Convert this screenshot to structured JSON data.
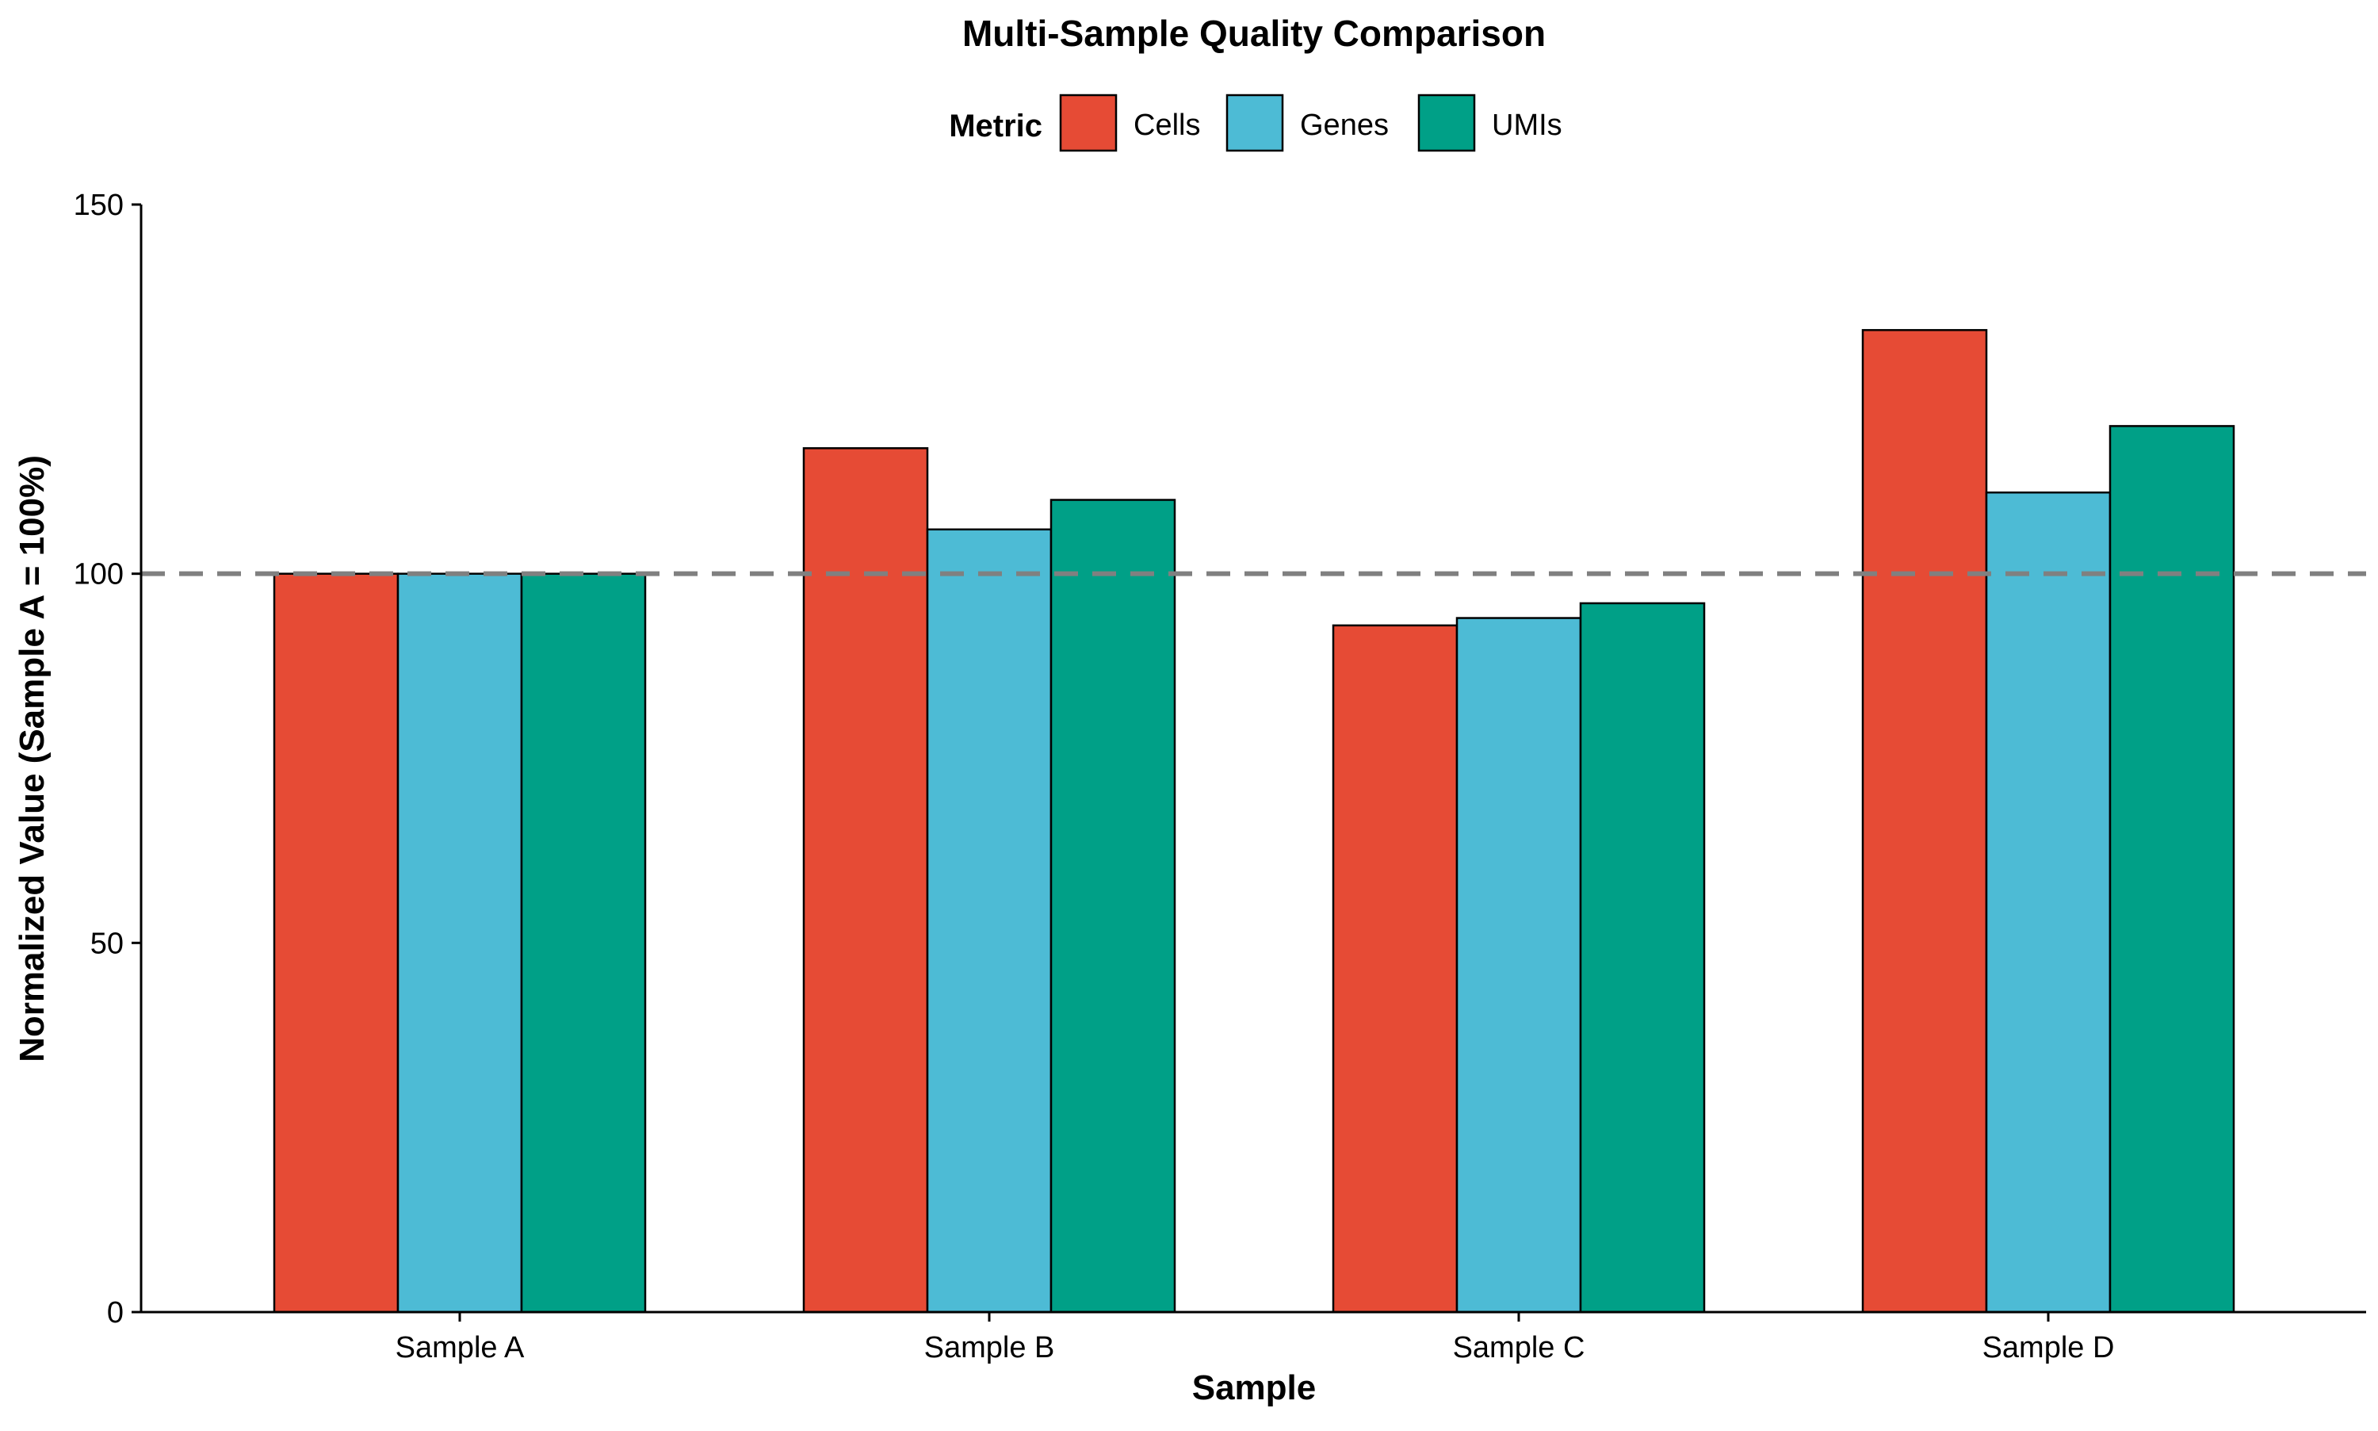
{
  "chart_data": {
    "type": "bar",
    "title": "Multi-Sample Quality Comparison",
    "xlabel": "Sample",
    "ylabel": "Normalized Value (Sample A = 100%)",
    "categories": [
      "Sample A",
      "Sample B",
      "Sample C",
      "Sample D"
    ],
    "series": [
      {
        "name": "Cells",
        "color": "#E64B35",
        "values": [
          100,
          117,
          93,
          133
        ]
      },
      {
        "name": "Genes",
        "color": "#4DBBD5",
        "values": [
          100,
          106,
          94,
          111
        ]
      },
      {
        "name": "UMIs",
        "color": "#00A087",
        "values": [
          100,
          110,
          96,
          120
        ]
      }
    ],
    "ylim": [
      0,
      150
    ],
    "yticks": [
      0,
      50,
      100,
      150
    ],
    "ytick_labels": [
      "0",
      "50",
      "100",
      "150"
    ],
    "reference_line": {
      "y": 100,
      "style": "dashed",
      "color": "#808080"
    },
    "legend": {
      "title": "Metric",
      "placement": "top-center"
    },
    "grid": false
  }
}
